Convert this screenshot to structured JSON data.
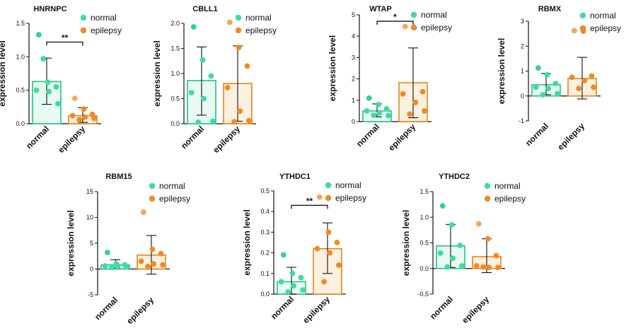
{
  "figure": {
    "colors": {
      "normal_fill": "#e8fbf3",
      "normal_stroke": "#27c27e",
      "normal_point": "#3ddca0",
      "normal_point_first": "#36d08f",
      "epilepsy_fill": "#fdf0df",
      "epilepsy_stroke": "#e3861e",
      "epilepsy_point": "#f08a24",
      "epilepsy_point_first": "#f6a55a",
      "axis": "#111111",
      "error_bar": "#111111"
    },
    "y_axis_label": "expression level",
    "categories": [
      "normal",
      "epilepsy"
    ]
  },
  "chart_data": [
    {
      "id": "hnrnpc",
      "type": "bar",
      "title": "HNRNPC",
      "ylabel": "expression level",
      "categories": [
        "normal",
        "epilepsy"
      ],
      "ylim": [
        0,
        1.5
      ],
      "ticks": [
        0.0,
        0.5,
        1.0,
        1.5
      ],
      "tick_labels": [
        "0.0",
        "0.5",
        "1.0",
        "1.5"
      ],
      "legend": [
        "normal",
        "epilepsy"
      ],
      "series": [
        {
          "name": "normal",
          "mean": 0.63,
          "err_low": 0.29,
          "err_high": 0.98,
          "points": [
            1.33,
            0.62,
            0.55,
            0.5,
            0.48,
            0.3,
            0.97
          ]
        },
        {
          "name": "epilepsy",
          "mean": 0.12,
          "err_low": 0.02,
          "err_high": 0.24,
          "points": [
            0.38,
            0.22,
            0.14,
            0.12,
            0.1,
            0.08,
            0.06
          ]
        }
      ],
      "significance": [
        {
          "label": "**",
          "y": 1.22
        }
      ]
    },
    {
      "id": "cbll1",
      "type": "bar",
      "title": "CBLL1",
      "ylabel": "expression level",
      "categories": [
        "normal",
        "epilepsy"
      ],
      "ylim": [
        0,
        2.0
      ],
      "ticks": [
        0.0,
        0.5,
        1.0,
        1.5,
        2.0
      ],
      "tick_labels": [
        "0.0",
        "0.5",
        "1.0",
        "1.5",
        "2.0"
      ],
      "legend": [
        "normal",
        "epilepsy"
      ],
      "series": [
        {
          "name": "normal",
          "mean": 0.86,
          "err_low": 0.17,
          "err_high": 1.53,
          "points": [
            1.93,
            1.27,
            0.95,
            0.62,
            0.5,
            0.05,
            0.03
          ]
        },
        {
          "name": "epilepsy",
          "mean": 0.8,
          "err_low": 0.05,
          "err_high": 1.55,
          "points": [
            2.02,
            1.52,
            1.15,
            0.72,
            0.25,
            0.06,
            0.04
          ]
        }
      ],
      "significance": []
    },
    {
      "id": "wtap",
      "type": "bar",
      "title": "WTAP",
      "ylabel": "expression level",
      "categories": [
        "normal",
        "epilepsy"
      ],
      "ylim": [
        0,
        5
      ],
      "ticks": [
        0,
        1,
        2,
        3,
        4,
        5
      ],
      "tick_labels": [
        "0",
        "1",
        "2",
        "3",
        "4",
        "5"
      ],
      "legend": [
        "normal",
        "epilepsy"
      ],
      "series": [
        {
          "name": "normal",
          "mean": 0.5,
          "err_low": 0.22,
          "err_high": 0.83,
          "points": [
            1.1,
            0.8,
            0.6,
            0.5,
            0.4,
            0.28,
            0.3
          ]
        },
        {
          "name": "epilepsy",
          "mean": 1.82,
          "err_low": 0.18,
          "err_high": 3.45,
          "points": [
            4.45,
            4.4,
            1.4,
            1.3,
            0.9,
            0.5,
            0.35
          ]
        }
      ],
      "significance": [
        {
          "label": "*",
          "y": 4.7
        }
      ]
    },
    {
      "id": "rbmx",
      "type": "bar",
      "title": "RBMX",
      "ylabel": "expression level",
      "categories": [
        "normal",
        "epilepsy"
      ],
      "ylim": [
        -1,
        3
      ],
      "ticks": [
        -1,
        0,
        1,
        2,
        3
      ],
      "tick_labels": [
        "-1",
        "0",
        "1",
        "2",
        "3"
      ],
      "legend": [
        "normal",
        "epilepsy"
      ],
      "series": [
        {
          "name": "normal",
          "mean": 0.45,
          "err_low": 0.05,
          "err_high": 0.9,
          "points": [
            1.12,
            0.85,
            0.5,
            0.35,
            0.3,
            0.1,
            0.05
          ]
        },
        {
          "name": "epilepsy",
          "mean": 0.7,
          "err_low": -0.12,
          "err_high": 1.55,
          "points": [
            2.62,
            2.6,
            0.8,
            0.75,
            0.62,
            0.35,
            0.3
          ]
        }
      ],
      "significance": []
    },
    {
      "id": "rbm15",
      "type": "bar",
      "title": "RBM15",
      "ylabel": "expression level",
      "categories": [
        "normal",
        "epilepsy"
      ],
      "ylim": [
        -5,
        15
      ],
      "ticks": [
        -5,
        0,
        5,
        10,
        15
      ],
      "tick_labels": [
        "-5",
        "0",
        "5",
        "10",
        "15"
      ],
      "legend": [
        "normal",
        "epilepsy"
      ],
      "series": [
        {
          "name": "normal",
          "mean": 0.8,
          "err_low": 0.2,
          "err_high": 1.8,
          "points": [
            3.2,
            1.0,
            0.8,
            0.6,
            0.5,
            0.4,
            0.3
          ]
        },
        {
          "name": "epilepsy",
          "mean": 2.7,
          "err_low": -1.0,
          "err_high": 6.5,
          "points": [
            11.0,
            3.8,
            3.0,
            1.5,
            1.0,
            0.8,
            0.5
          ]
        }
      ],
      "significance": []
    },
    {
      "id": "ythdc1",
      "type": "bar",
      "title": "YTHDC1",
      "ylabel": "expression level",
      "categories": [
        "normal",
        "epilepsy"
      ],
      "ylim": [
        0,
        0.5
      ],
      "ticks": [
        0.0,
        0.1,
        0.2,
        0.3,
        0.4,
        0.5
      ],
      "tick_labels": [
        "0.0",
        "0.1",
        "0.2",
        "0.3",
        "0.4",
        "0.5"
      ],
      "legend": [
        "normal",
        "epilepsy"
      ],
      "series": [
        {
          "name": "normal",
          "mean": 0.06,
          "err_low": 0.0,
          "err_high": 0.13,
          "points": [
            0.19,
            0.1,
            0.08,
            0.06,
            0.04,
            0.02,
            0.01
          ]
        },
        {
          "name": "epilepsy",
          "mean": 0.22,
          "err_low": 0.1,
          "err_high": 0.345,
          "points": [
            0.47,
            0.3,
            0.25,
            0.22,
            0.2,
            0.14,
            0.06
          ]
        }
      ],
      "significance": [
        {
          "label": "**",
          "y": 0.43
        }
      ]
    },
    {
      "id": "ythdc2",
      "type": "bar",
      "title": "YTHDC2",
      "ylabel": "expression level",
      "categories": [
        "normal",
        "epilepsy"
      ],
      "ylim": [
        -0.5,
        1.5
      ],
      "ticks": [
        -0.5,
        0.0,
        0.5,
        1.0,
        1.5
      ],
      "tick_labels": [
        "-0.5",
        "0.0",
        "0.5",
        "1.0",
        "1.5"
      ],
      "legend": [
        "normal",
        "epilepsy"
      ],
      "series": [
        {
          "name": "normal",
          "mean": 0.44,
          "err_low": 0.02,
          "err_high": 0.86,
          "points": [
            1.22,
            0.85,
            0.45,
            0.3,
            0.2,
            0.05,
            0.03
          ]
        },
        {
          "name": "epilepsy",
          "mean": 0.23,
          "err_low": -0.08,
          "err_high": 0.58,
          "points": [
            0.87,
            0.58,
            0.25,
            0.05,
            0.02,
            0.02,
            0.03
          ]
        }
      ],
      "significance": []
    }
  ]
}
